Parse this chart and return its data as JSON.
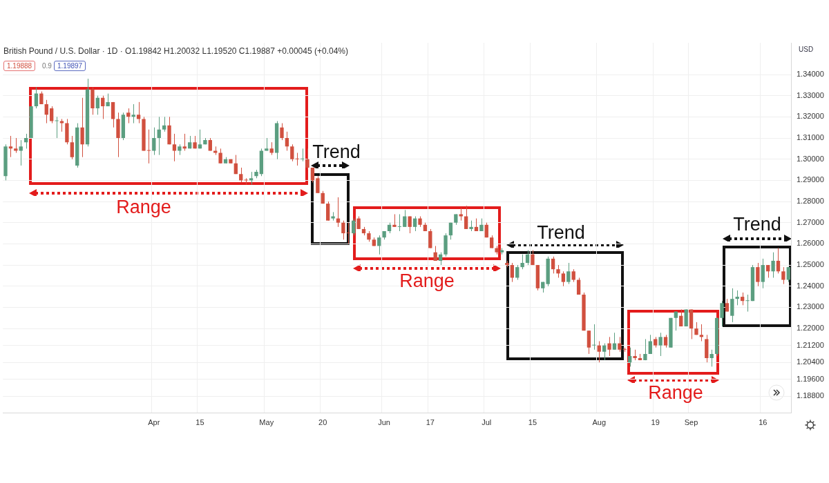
{
  "chart_data": {
    "type": "candlestick",
    "title": "British Pound / U.S. Dollar · 1D · O1.19842 H1.20032 L1.19520 C1.19887 +0.00045 (+0.04%)",
    "ylabel": "USD",
    "annotations": [
      "1.19888",
      "0.9",
      "1.19897",
      "Range",
      "Trend",
      "Range",
      "Trend",
      "Range",
      "Trend"
    ],
    "categories": [
      null,
      null,
      null,
      null,
      null,
      null,
      null,
      null,
      null,
      null,
      null,
      null,
      null,
      null,
      null,
      null,
      null,
      null,
      null,
      null,
      null,
      null,
      null,
      null,
      null,
      null,
      null,
      null,
      null,
      "Apr",
      null,
      null,
      null,
      null,
      null,
      null,
      null,
      null,
      "15",
      null,
      null,
      null,
      null,
      null,
      null,
      null,
      null,
      null,
      null,
      null,
      null,
      "May",
      null,
      null,
      null,
      null,
      null,
      null,
      null,
      null,
      null,
      null,
      "20",
      null,
      null,
      null,
      null,
      null,
      null,
      null,
      null,
      null,
      null,
      null,
      "Jun",
      null,
      null,
      null,
      null,
      null,
      null,
      null,
      null,
      "17",
      null,
      null,
      null,
      null,
      null,
      null,
      null,
      null,
      null,
      null,
      "Jul",
      null,
      null,
      null,
      null,
      null,
      null,
      null,
      null,
      "15",
      null,
      null,
      null,
      null,
      null,
      null,
      null,
      null,
      null,
      null,
      null,
      null,
      "Aug",
      null,
      null,
      null,
      null,
      null,
      null,
      null,
      null,
      null,
      null,
      "19",
      null,
      null,
      null,
      null,
      null,
      null,
      "Sep",
      null,
      null,
      null,
      null,
      null,
      null,
      null,
      null,
      null,
      null,
      null,
      null,
      null,
      "16",
      null,
      null,
      null,
      null,
      null
    ],
    "ohlc": [
      [
        1.292,
        1.307,
        1.29,
        1.306
      ],
      [
        1.306,
        1.311,
        1.301,
        1.305
      ],
      [
        1.305,
        1.31,
        1.303,
        1.304
      ],
      [
        1.304,
        1.309,
        1.297,
        1.306
      ],
      [
        1.308,
        1.312,
        1.305,
        1.31
      ],
      [
        1.31,
        1.325,
        1.31,
        1.325
      ],
      [
        1.325,
        1.334,
        1.324,
        1.331
      ],
      [
        1.331,
        1.332,
        1.326,
        1.326
      ],
      [
        1.326,
        1.328,
        1.317,
        1.321
      ],
      [
        1.324,
        1.325,
        1.317,
        1.318
      ],
      [
        1.318,
        1.32,
        1.31,
        1.318
      ],
      [
        1.318,
        1.319,
        1.313,
        1.317
      ],
      [
        1.317,
        1.319,
        1.307,
        1.308
      ],
      [
        1.308,
        1.311,
        1.3,
        1.301
      ],
      [
        1.297,
        1.317,
        1.296,
        1.315
      ],
      [
        1.315,
        1.329,
        1.301,
        1.307
      ],
      [
        1.307,
        1.338,
        1.306,
        1.333
      ],
      [
        1.333,
        1.334,
        1.321,
        1.324
      ],
      [
        1.324,
        1.33,
        1.321,
        1.329
      ],
      [
        1.329,
        1.33,
        1.319,
        1.325
      ],
      [
        1.325,
        1.331,
        1.325,
        1.327
      ],
      [
        1.327,
        1.327,
        1.315,
        1.319
      ],
      [
        1.319,
        1.322,
        1.301,
        1.31
      ],
      [
        1.31,
        1.322,
        1.309,
        1.321
      ],
      [
        1.322,
        1.324,
        1.317,
        1.32
      ],
      [
        1.32,
        1.326,
        1.317,
        1.321
      ],
      [
        1.321,
        1.327,
        1.317,
        1.319
      ],
      [
        1.319,
        1.32,
        1.304,
        1.304
      ],
      [
        1.304,
        1.314,
        1.298,
        1.304
      ],
      [
        1.304,
        1.315,
        1.302,
        1.31
      ],
      [
        1.31,
        1.32,
        1.302,
        1.314
      ],
      [
        1.314,
        1.32,
        1.313,
        1.316
      ],
      [
        1.316,
        1.32,
        1.307,
        1.307
      ],
      [
        1.307,
        1.312,
        1.299,
        1.304
      ],
      [
        1.304,
        1.307,
        1.302,
        1.306
      ],
      [
        1.306,
        1.312,
        1.304,
        1.305
      ],
      [
        1.305,
        1.311,
        1.305,
        1.308
      ],
      [
        1.308,
        1.311,
        1.305,
        1.305
      ],
      [
        1.305,
        1.314,
        1.305,
        1.307
      ],
      [
        1.307,
        1.31,
        1.307,
        1.309
      ],
      [
        1.309,
        1.31,
        1.304,
        1.304
      ],
      [
        1.304,
        1.306,
        1.302,
        1.303
      ],
      [
        1.303,
        1.305,
        1.298,
        1.298
      ],
      [
        1.298,
        1.301,
        1.298,
        1.3
      ],
      [
        1.3,
        1.3,
        1.298,
        1.298
      ],
      [
        1.298,
        1.302,
        1.293,
        1.293
      ],
      [
        1.293,
        1.296,
        1.289,
        1.29
      ],
      [
        1.29,
        1.291,
        1.288,
        1.29
      ],
      [
        1.29,
        1.294,
        1.288,
        1.291
      ],
      [
        1.292,
        1.295,
        1.291,
        1.294
      ],
      [
        1.293,
        1.305,
        1.292,
        1.304
      ],
      [
        1.304,
        1.31,
        1.304,
        1.305
      ],
      [
        1.305,
        1.308,
        1.302,
        1.303
      ],
      [
        1.303,
        1.318,
        1.3,
        1.317
      ],
      [
        1.315,
        1.317,
        1.309,
        1.31
      ],
      [
        1.31,
        1.313,
        1.304,
        1.306
      ],
      [
        1.306,
        1.307,
        1.299,
        1.3
      ],
      [
        1.3,
        1.303,
        1.297,
        1.3
      ],
      [
        1.3,
        1.305,
        1.299,
        1.3
      ],
      [
        1.3,
        1.305,
        1.295,
        1.296
      ],
      [
        1.296,
        1.296,
        1.289,
        1.29
      ],
      [
        1.291,
        1.292,
        1.284,
        1.284
      ],
      [
        1.284,
        1.285,
        1.279,
        1.279
      ],
      [
        1.279,
        1.28,
        1.271,
        1.271
      ],
      [
        1.272,
        1.275,
        1.271,
        1.273
      ],
      [
        1.272,
        1.282,
        1.268,
        1.27
      ],
      [
        1.27,
        1.271,
        1.262,
        1.265
      ],
      [
        1.265,
        1.27,
        1.26,
        1.265
      ],
      [
        1.265,
        1.272,
        1.264,
        1.271
      ],
      [
        1.272,
        1.273,
        1.267,
        1.267
      ],
      [
        1.267,
        1.268,
        1.264,
        1.265
      ],
      [
        1.265,
        1.266,
        1.261,
        1.262
      ],
      [
        1.262,
        1.263,
        1.259,
        1.259
      ],
      [
        1.259,
        1.264,
        1.255,
        1.263
      ],
      [
        1.263,
        1.266,
        1.262,
        1.266
      ],
      [
        1.266,
        1.27,
        1.265,
        1.269
      ],
      [
        1.269,
        1.274,
        1.268,
        1.268
      ],
      [
        1.268,
        1.274,
        1.266,
        1.268
      ],
      [
        1.268,
        1.276,
        1.268,
        1.273
      ],
      [
        1.273,
        1.273,
        1.265,
        1.268
      ],
      [
        1.268,
        1.273,
        1.266,
        1.272
      ],
      [
        1.272,
        1.273,
        1.268,
        1.269
      ],
      [
        1.269,
        1.27,
        1.266,
        1.266
      ],
      [
        1.266,
        1.267,
        1.258,
        1.258
      ],
      [
        1.256,
        1.259,
        1.252,
        1.252
      ],
      [
        1.252,
        1.256,
        1.25,
        1.255
      ],
      [
        1.255,
        1.265,
        1.254,
        1.264
      ],
      [
        1.264,
        1.27,
        1.262,
        1.27
      ],
      [
        1.27,
        1.274,
        1.269,
        1.274
      ],
      [
        1.274,
        1.277,
        1.271,
        1.273
      ],
      [
        1.273,
        1.278,
        1.267,
        1.267
      ],
      [
        1.267,
        1.271,
        1.266,
        1.268
      ],
      [
        1.268,
        1.272,
        1.266,
        1.266
      ],
      [
        1.266,
        1.272,
        1.266,
        1.269
      ],
      [
        1.269,
        1.27,
        1.263,
        1.263
      ],
      [
        1.263,
        1.264,
        1.258,
        1.258
      ],
      [
        1.258,
        1.259,
        1.255,
        1.256
      ],
      [
        1.256,
        1.258,
        1.255,
        1.257
      ],
      [
        1.251,
        1.252,
        1.249,
        1.25
      ],
      [
        1.25,
        1.251,
        1.242,
        1.244
      ],
      [
        1.244,
        1.25,
        1.243,
        1.249
      ],
      [
        1.249,
        1.255,
        1.248,
        1.251
      ],
      [
        1.251,
        1.257,
        1.25,
        1.255
      ],
      [
        1.255,
        1.257,
        1.25,
        1.25
      ],
      [
        1.25,
        1.25,
        1.238,
        1.239
      ],
      [
        1.239,
        1.242,
        1.237,
        1.242
      ],
      [
        1.241,
        1.254,
        1.24,
        1.253
      ],
      [
        1.253,
        1.254,
        1.246,
        1.248
      ],
      [
        1.248,
        1.25,
        1.244,
        1.246
      ],
      [
        1.246,
        1.247,
        1.24,
        1.242
      ],
      [
        1.242,
        1.251,
        1.241,
        1.247
      ],
      [
        1.247,
        1.248,
        1.242,
        1.243
      ],
      [
        1.243,
        1.244,
        1.236,
        1.236
      ],
      [
        1.236,
        1.237,
        1.219,
        1.219
      ],
      [
        1.219,
        1.219,
        1.208,
        1.211
      ],
      [
        1.212,
        1.222,
        1.21,
        1.212
      ],
      [
        1.212,
        1.214,
        1.204,
        1.209
      ],
      [
        1.209,
        1.213,
        1.205,
        1.212
      ],
      [
        1.213,
        1.216,
        1.207,
        1.21
      ],
      [
        1.21,
        1.218,
        1.21,
        1.213
      ],
      [
        1.213,
        1.216,
        1.209,
        1.21
      ],
      [
        1.21,
        1.211,
        1.209,
        1.21
      ],
      [
        1.204,
        1.211,
        1.202,
        1.207
      ],
      [
        1.207,
        1.21,
        1.205,
        1.206
      ],
      [
        1.206,
        1.208,
        1.205,
        1.205
      ],
      [
        1.205,
        1.215,
        1.205,
        1.208
      ],
      [
        1.208,
        1.217,
        1.208,
        1.214
      ],
      [
        1.215,
        1.216,
        1.211,
        1.212
      ],
      [
        1.212,
        1.218,
        1.207,
        1.216
      ],
      [
        1.216,
        1.217,
        1.211,
        1.212
      ],
      [
        1.211,
        1.225,
        1.211,
        1.225
      ],
      [
        1.225,
        1.228,
        1.219,
        1.228
      ],
      [
        1.226,
        1.229,
        1.221,
        1.221
      ],
      [
        1.221,
        1.229,
        1.221,
        1.229
      ],
      [
        1.229,
        1.229,
        1.215,
        1.22
      ],
      [
        1.22,
        1.223,
        1.217,
        1.217
      ],
      [
        1.217,
        1.222,
        1.214,
        1.216
      ],
      [
        1.215,
        1.217,
        1.204,
        1.206
      ],
      [
        1.206,
        1.21,
        1.202,
        1.208
      ],
      [
        1.208,
        1.225,
        1.207,
        1.225
      ],
      [
        1.225,
        1.233,
        1.221,
        1.232
      ],
      [
        1.232,
        1.234,
        1.228,
        1.228
      ],
      [
        1.226,
        1.239,
        1.223,
        1.234
      ],
      [
        1.234,
        1.238,
        1.231,
        1.235
      ],
      [
        1.235,
        1.237,
        1.231,
        1.233
      ],
      [
        1.233,
        1.236,
        1.228,
        1.233
      ],
      [
        1.233,
        1.25,
        1.233,
        1.249
      ],
      [
        1.249,
        1.251,
        1.24,
        1.242
      ],
      [
        1.242,
        1.253,
        1.239,
        1.25
      ],
      [
        1.25,
        1.25,
        1.244,
        1.247
      ],
      [
        1.247,
        1.256,
        1.244,
        1.252
      ],
      [
        1.252,
        1.258,
        1.246,
        1.247
      ],
      [
        1.247,
        1.249,
        1.241,
        1.243
      ],
      [
        1.243,
        1.249,
        1.242,
        1.249
      ]
    ],
    "colors": [
      "#5b9e80",
      "#d1503f",
      "#d1503f",
      "#5b9e80",
      "#5b9e80",
      "#5b9e80",
      "#5b9e80",
      "#d1503f",
      "#d1503f",
      "#d1503f",
      "#5b9e80",
      "#d1503f",
      "#d1503f",
      "#d1503f",
      "#5b9e80",
      "#d1503f",
      "#5b9e80",
      "#d1503f",
      "#5b9e80",
      "#d1503f",
      "#5b9e80",
      "#d1503f",
      "#d1503f",
      "#5b9e80",
      "#d1503f",
      "#5b9e80",
      "#d1503f",
      "#d1503f",
      "#d1503f",
      "#5b9e80",
      "#5b9e80",
      "#5b9e80",
      "#d1503f",
      "#d1503f",
      "#5b9e80",
      "#d1503f",
      "#5b9e80",
      "#d1503f",
      "#5b9e80",
      "#5b9e80",
      "#d1503f",
      "#d1503f",
      "#d1503f",
      "#5b9e80",
      "#d1503f",
      "#d1503f",
      "#d1503f",
      "#d1503f",
      "#5b9e80",
      "#5b9e80",
      "#5b9e80",
      "#5b9e80",
      "#d1503f",
      "#5b9e80",
      "#d1503f",
      "#d1503f",
      "#d1503f",
      "#d1503f",
      "#5b9e80",
      "#d1503f",
      "#d1503f",
      "#d1503f",
      "#d1503f",
      "#d1503f",
      "#5b9e80",
      "#d1503f",
      "#d1503f",
      "#d1503f",
      "#5b9e80",
      "#d1503f",
      "#d1503f",
      "#d1503f",
      "#d1503f",
      "#5b9e80",
      "#5b9e80",
      "#5b9e80",
      "#d1503f",
      "#5b9e80",
      "#5b9e80",
      "#d1503f",
      "#5b9e80",
      "#d1503f",
      "#d1503f",
      "#d1503f",
      "#d1503f",
      "#5b9e80",
      "#5b9e80",
      "#5b9e80",
      "#5b9e80",
      "#d1503f",
      "#d1503f",
      "#5b9e80",
      "#d1503f",
      "#5b9e80",
      "#d1503f",
      "#d1503f",
      "#d1503f",
      "#5b9e80",
      "#d1503f",
      "#d1503f",
      "#5b9e80",
      "#5b9e80",
      "#5b9e80",
      "#d1503f",
      "#d1503f",
      "#5b9e80",
      "#5b9e80",
      "#d1503f",
      "#d1503f",
      "#d1503f",
      "#5b9e80",
      "#d1503f",
      "#d1503f",
      "#d1503f",
      "#d1503f",
      "#5b9e80",
      "#d1503f",
      "#5b9e80",
      "#d1503f",
      "#5b9e80",
      "#d1503f",
      "#d1503f",
      "#5b9e80",
      "#d1503f",
      "#d1503f",
      "#5b9e80",
      "#5b9e80",
      "#d1503f",
      "#5b9e80",
      "#d1503f",
      "#5b9e80",
      "#5b9e80",
      "#d1503f",
      "#5b9e80",
      "#d1503f",
      "#d1503f",
      "#d1503f",
      "#d1503f",
      "#5b9e80",
      "#5b9e80",
      "#5b9e80",
      "#d1503f",
      "#5b9e80",
      "#5b9e80",
      "#d1503f",
      "#5b9e80",
      "#5b9e80",
      "#d1503f",
      "#5b9e80",
      "#d1503f",
      "#5b9e80",
      "#d1503f",
      "#d1503f",
      "#5b9e80"
    ],
    "ylim": [
      1.18,
      1.355
    ],
    "yticks": [
      {
        "value": 1.188,
        "label": "1.18800"
      },
      {
        "value": 1.196,
        "label": "1.19600"
      },
      {
        "value": 1.204,
        "label": "1.20400"
      },
      {
        "value": 1.212,
        "label": "1.21200"
      },
      {
        "value": 1.22,
        "label": "1.22000"
      },
      {
        "value": 1.23,
        "label": "1.23000"
      },
      {
        "value": 1.24,
        "label": "1.24000"
      },
      {
        "value": 1.25,
        "label": "1.25000"
      },
      {
        "value": 1.26,
        "label": "1.26000"
      },
      {
        "value": 1.27,
        "label": "1.27000"
      },
      {
        "value": 1.28,
        "label": "1.28000"
      },
      {
        "value": 1.29,
        "label": "1.29000"
      },
      {
        "value": 1.3,
        "label": "1.30000"
      },
      {
        "value": 1.31,
        "label": "1.31000"
      },
      {
        "value": 1.32,
        "label": "1.32000"
      },
      {
        "value": 1.33,
        "label": "1.33000"
      },
      {
        "value": 1.34,
        "label": "1.34000"
      }
    ],
    "grid": true,
    "legend": false
  }
}
